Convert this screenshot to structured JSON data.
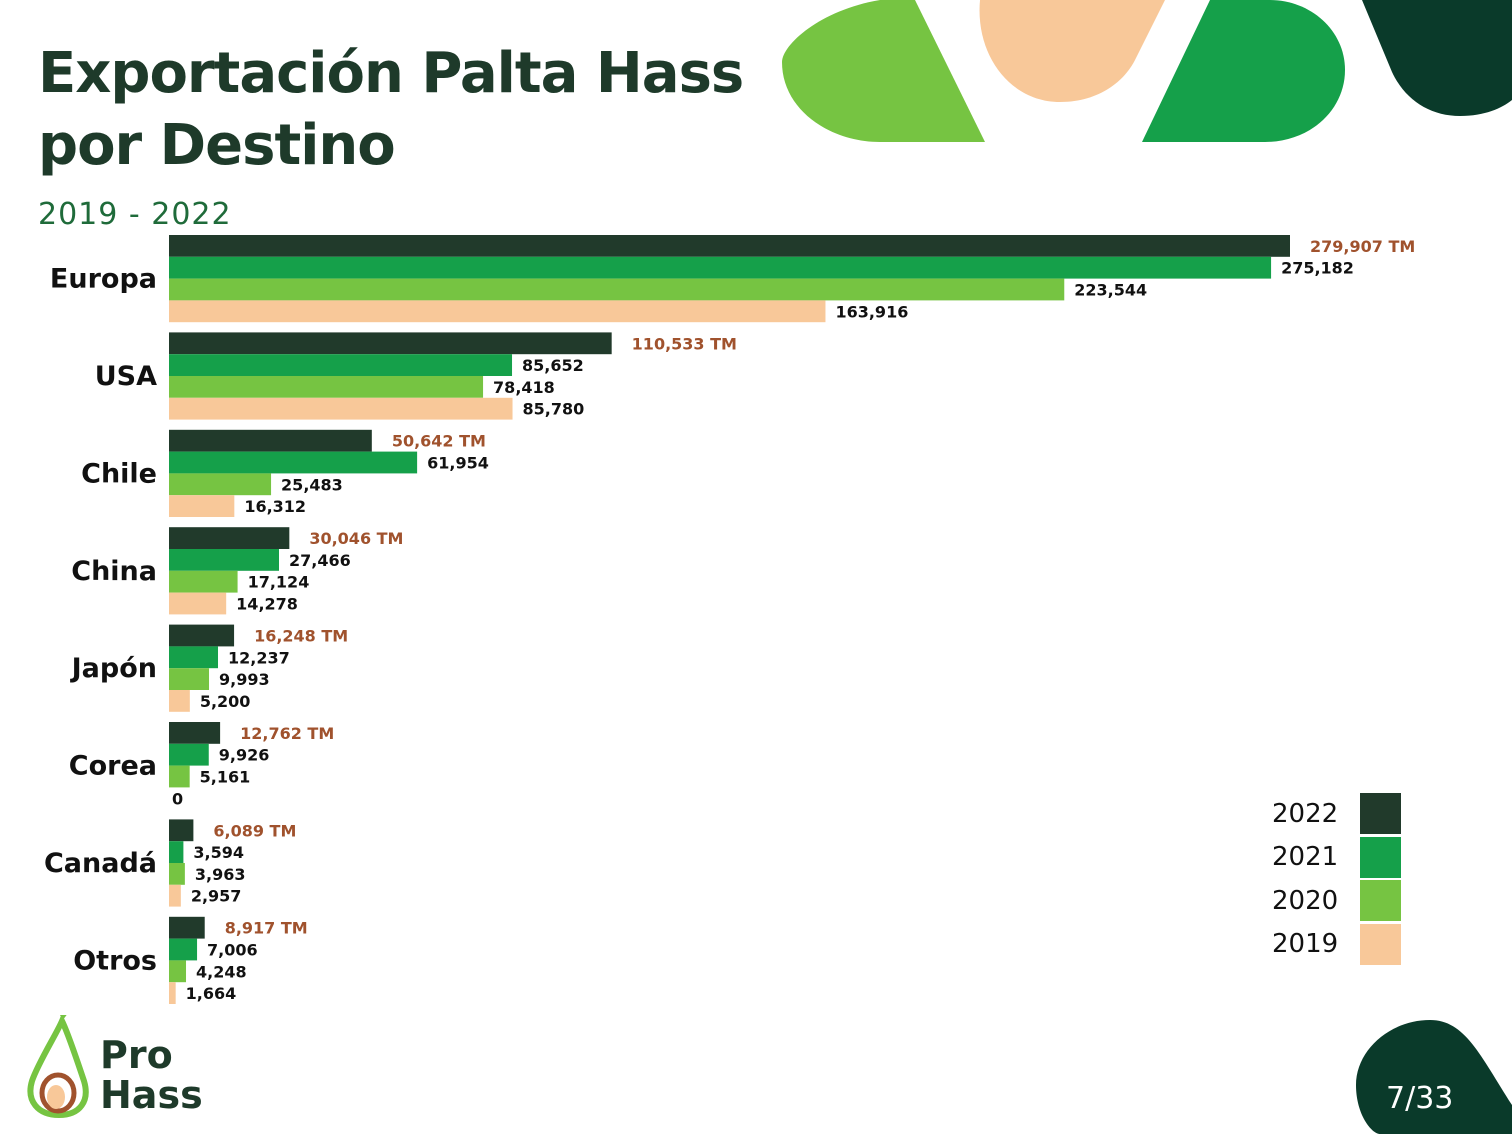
{
  "header": {
    "title": "Exportación Palta Hass por Destino",
    "subtitle": "2019 - 2022"
  },
  "chart_data": {
    "type": "bar",
    "orientation": "horizontal",
    "title": "Exportación Palta Hass por Destino",
    "subtitle": "2019 - 2022",
    "categories": [
      "Europa",
      "USA",
      "Chile",
      "China",
      "Japón",
      "Corea",
      "Canadá",
      "Otros"
    ],
    "series": [
      {
        "name": "2022",
        "color": "#213a2b",
        "values": [
          279907,
          110533,
          50642,
          30046,
          16248,
          12762,
          6089,
          8917
        ],
        "labels": [
          "279,907 TM",
          "110,533 TM",
          "50,642 TM",
          "30,046 TM",
          "16,248 TM",
          "12,762 TM",
          "6,089 TM",
          "8,917 TM"
        ]
      },
      {
        "name": "2021",
        "color": "#15a04a",
        "values": [
          275182,
          85652,
          61954,
          27466,
          12237,
          9926,
          3594,
          7006
        ],
        "labels": [
          "275,182",
          "85,652",
          "61,954",
          "27,466",
          "12,237",
          "9,926",
          "3,594",
          "7,006"
        ]
      },
      {
        "name": "2020",
        "color": "#76c442",
        "values": [
          223544,
          78418,
          25483,
          17124,
          9993,
          5161,
          3963,
          4248
        ],
        "labels": [
          "223,544",
          "78,418",
          "25,483",
          "17,124",
          "9,993",
          "5,161",
          "3,963",
          "4,248"
        ]
      },
      {
        "name": "2019",
        "color": "#f8c899",
        "values": [
          163916,
          85780,
          16312,
          14278,
          5200,
          0,
          2957,
          1664
        ],
        "labels": [
          "163,916",
          "85,780",
          "16,312",
          "14,278",
          "5,200",
          "0",
          "2,957",
          "1,664"
        ]
      }
    ],
    "xlim": [
      0,
      279907
    ],
    "legend": "bottom-right",
    "grid": false
  },
  "legend": {
    "items": [
      {
        "label": "2022",
        "color": "#213a2b"
      },
      {
        "label": "2021",
        "color": "#15a04a"
      },
      {
        "label": "2020",
        "color": "#76c442"
      },
      {
        "label": "2019",
        "color": "#f8c899"
      }
    ]
  },
  "logo": {
    "line1": "Pro",
    "line2": "Hass"
  },
  "page": {
    "number": "7/33"
  },
  "colors": {
    "total_label": "#a0522d",
    "title": "#1e3a2a",
    "subtitle": "#1f6b3a",
    "dark_green": "#0a3a2a"
  }
}
